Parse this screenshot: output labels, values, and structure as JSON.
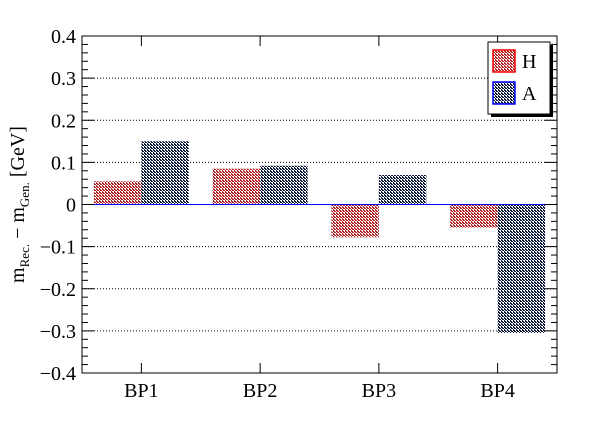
{
  "chart_data": {
    "type": "bar",
    "categories": [
      "BP1",
      "BP2",
      "BP3",
      "BP4"
    ],
    "series": [
      {
        "name": "H",
        "values": [
          0.055,
          0.085,
          -0.078,
          -0.055
        ],
        "color": "#b22222"
      },
      {
        "name": "A",
        "values": [
          0.15,
          0.092,
          0.07,
          -0.305
        ],
        "color": "#00008b"
      }
    ],
    "ylabel_main": "m",
    "ylabel_sub1": "Rec.",
    "ylabel_mid": " − m",
    "ylabel_sub2": "Gen.",
    "ylabel_unit": " [GeV]",
    "ylim": [
      -0.4,
      0.4
    ],
    "yticks": [
      -0.4,
      -0.3,
      -0.2,
      -0.1,
      0,
      0.1,
      0.2,
      0.3,
      0.4
    ],
    "ytick_labels": [
      "−0.4",
      "−0.3",
      "−0.2",
      "−0.1",
      "0",
      "0.1",
      "0.2",
      "0.3",
      "0.4"
    ],
    "grid": "horizontal dotted",
    "legend_position": "top-right",
    "zero_line_color": "#0000ff"
  }
}
